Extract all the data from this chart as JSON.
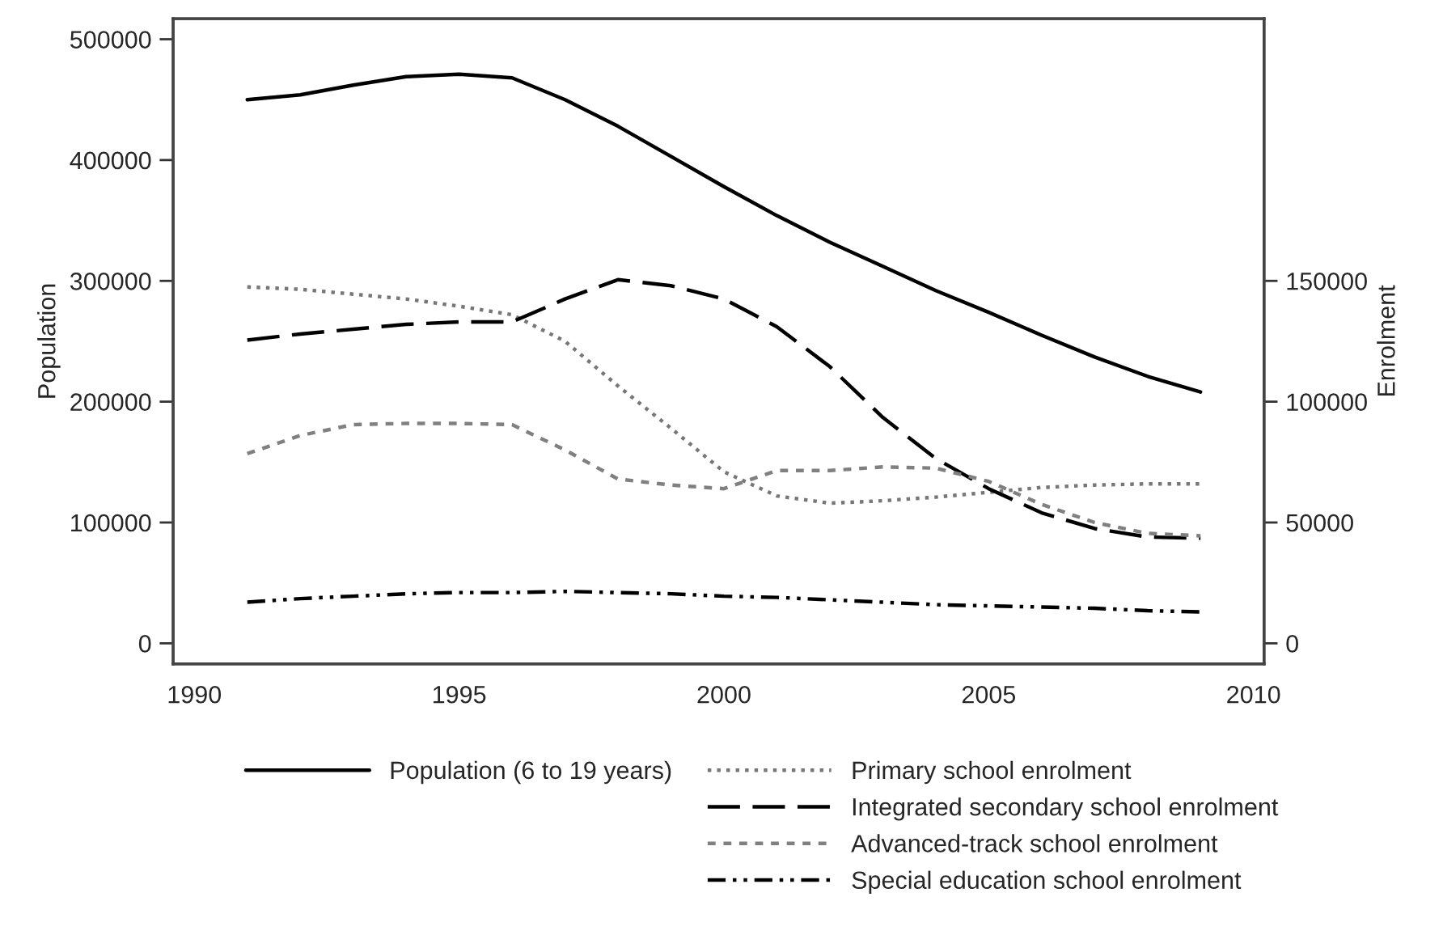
{
  "chart_data": {
    "type": "line",
    "ylabel": "Population",
    "y2label": "Enrolment",
    "x": [
      1991,
      1992,
      1993,
      1994,
      1995,
      1996,
      1997,
      1998,
      1999,
      2000,
      2001,
      2002,
      2003,
      2004,
      2005,
      2006,
      2007,
      2008,
      2009
    ],
    "xlim": [
      1989.6,
      2010.2
    ],
    "xticks": [
      1990,
      1995,
      2000,
      2005,
      2010
    ],
    "ylim": [
      -17000,
      517000
    ],
    "yticks": [
      0,
      100000,
      200000,
      300000,
      400000,
      500000
    ],
    "y2lim": [
      -8500,
      258500
    ],
    "y2ticks": [
      0,
      50000,
      100000,
      150000
    ],
    "grid": false,
    "legend": "bottom",
    "marker": "none",
    "series": [
      {
        "name": "Population (6 to 19 years)",
        "color": "#000000",
        "line_style": "solid",
        "axis": "y",
        "values": [
          450000,
          454000,
          462000,
          469000,
          471000,
          468000,
          450000,
          428000,
          403000,
          378000,
          354000,
          332000,
          312000,
          292000,
          274000,
          255000,
          237000,
          221000,
          208000
        ]
      },
      {
        "name": "Primary school enrolment",
        "color": "#777777",
        "line_style": "dotted",
        "axis": "y2",
        "values": [
          147500,
          146500,
          144500,
          142500,
          139500,
          136000,
          125000,
          106500,
          89000,
          71000,
          61000,
          58000,
          59000,
          60500,
          62500,
          64500,
          65500,
          66000,
          66000
        ]
      },
      {
        "name": "Integrated secondary school enrolment",
        "color": "#000000",
        "line_style": "dashed",
        "axis": "y2",
        "values": [
          125500,
          128000,
          130000,
          132000,
          133000,
          133000,
          142500,
          150500,
          148000,
          142500,
          131000,
          114500,
          93500,
          76500,
          64000,
          54000,
          47500,
          44000,
          43500
        ]
      },
      {
        "name": "Advanced-track school enrolment",
        "color": "#808080",
        "line_style": "shortdash",
        "axis": "y2",
        "values": [
          78500,
          86000,
          90500,
          91000,
          91000,
          90500,
          80000,
          68000,
          65500,
          64000,
          71500,
          71500,
          73000,
          72500,
          67000,
          57500,
          50000,
          45500,
          44500
        ]
      },
      {
        "name": "Special education school enrolment",
        "color": "#000000",
        "line_style": "dashdotdot",
        "axis": "y2",
        "values": [
          17000,
          18500,
          19500,
          20500,
          21000,
          21000,
          21500,
          21000,
          20500,
          19500,
          19000,
          18000,
          17000,
          16000,
          15500,
          15000,
          14500,
          13500,
          13000
        ]
      }
    ]
  }
}
